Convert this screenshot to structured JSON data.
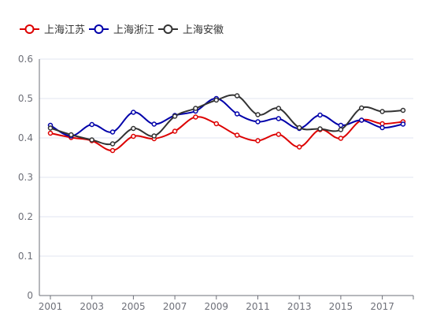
{
  "chart_data": {
    "type": "line",
    "smooth": true,
    "x": [
      2001,
      2002,
      2003,
      2004,
      2005,
      2006,
      2007,
      2008,
      2009,
      2010,
      2011,
      2012,
      2013,
      2014,
      2015,
      2016,
      2017,
      2018
    ],
    "xticks": [
      "2001",
      "2003",
      "2005",
      "2007",
      "2009",
      "2011",
      "2013",
      "2015",
      "2017"
    ],
    "yticks": [
      "0",
      "0.1",
      "0.2",
      "0.3",
      "0.4",
      "0.5",
      "0.6"
    ],
    "ylim": [
      0,
      0.6
    ],
    "grid": true,
    "legend_position": "top-left",
    "series": [
      {
        "name": "上海江苏",
        "color": "#dd0000",
        "values": [
          0.412,
          0.401,
          0.393,
          0.368,
          0.404,
          0.398,
          0.417,
          0.453,
          0.436,
          0.407,
          0.393,
          0.409,
          0.377,
          0.421,
          0.399,
          0.445,
          0.436,
          0.441
        ]
      },
      {
        "name": "上海浙江",
        "color": "#0000aa",
        "values": [
          0.432,
          0.405,
          0.434,
          0.415,
          0.465,
          0.435,
          0.457,
          0.468,
          0.5,
          0.461,
          0.441,
          0.449,
          0.424,
          0.458,
          0.432,
          0.445,
          0.426,
          0.435
        ]
      },
      {
        "name": "上海安徽",
        "color": "#333333",
        "values": [
          0.425,
          0.408,
          0.395,
          0.385,
          0.424,
          0.405,
          0.455,
          0.475,
          0.496,
          0.507,
          0.459,
          0.475,
          0.426,
          0.423,
          0.421,
          0.476,
          0.467,
          0.47
        ]
      }
    ]
  }
}
